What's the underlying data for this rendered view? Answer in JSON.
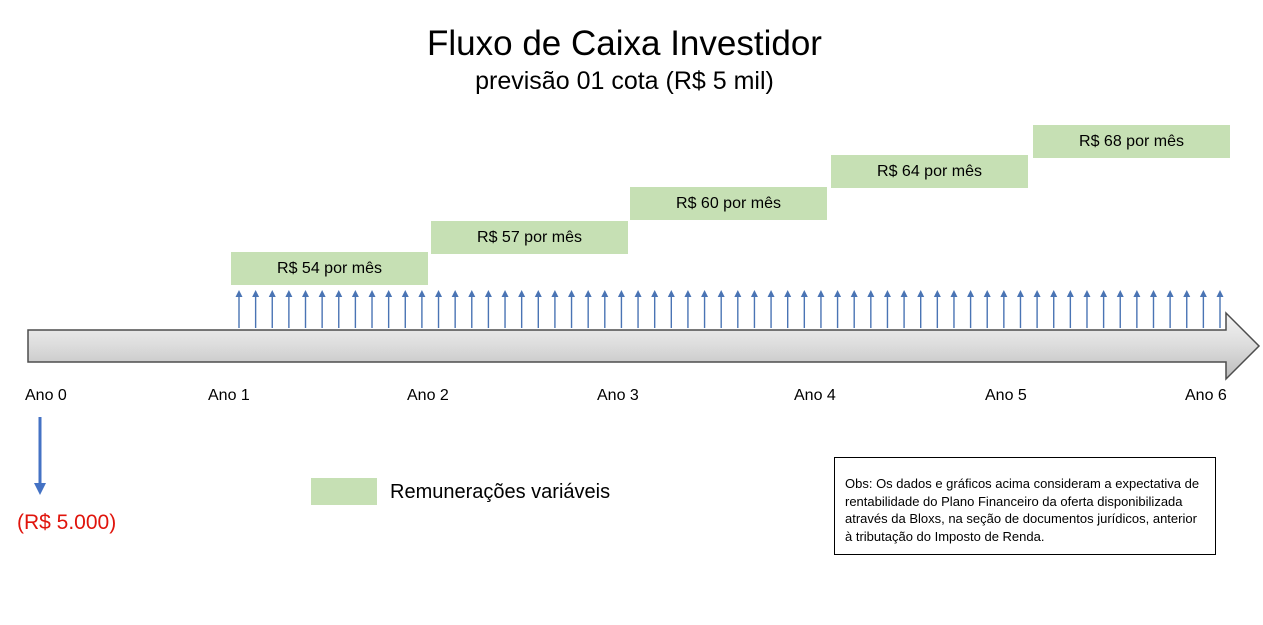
{
  "title": "Fluxo de Caixa Investidor",
  "subtitle": "previsão 01 cota (R$ 5 mil)",
  "colors": {
    "payment_box": "#c6e0b4",
    "arrow_up": "#4a74b4",
    "arrow_down": "#4472c4",
    "timeline_fill": "#dcdcdc",
    "investment_text": "#e0140c"
  },
  "years": [
    "Ano 0",
    "Ano 1",
    "Ano 2",
    "Ano 3",
    "Ano 4",
    "Ano 5",
    "Ano 6"
  ],
  "monthly_payments": [
    {
      "label": "R$ 54 por mês",
      "value": 54
    },
    {
      "label": "R$ 57 por mês",
      "value": 57
    },
    {
      "label": "R$ 60 por mês",
      "value": 60
    },
    {
      "label": "R$ 64 por mês",
      "value": 64
    },
    {
      "label": "R$ 68 por mês",
      "value": 68
    }
  ],
  "investment": {
    "label": "(R$ 5.000)",
    "value": -5000
  },
  "legend": {
    "label": "Remunerações variáveis"
  },
  "note": "Obs: Os dados e gráficos acima consideram a expectativa de rentabilidade do Plano Financeiro da oferta disponibilizada através da Bloxs, na seção de documentos jurídicos, anterior à tributação do Imposto de Renda."
}
